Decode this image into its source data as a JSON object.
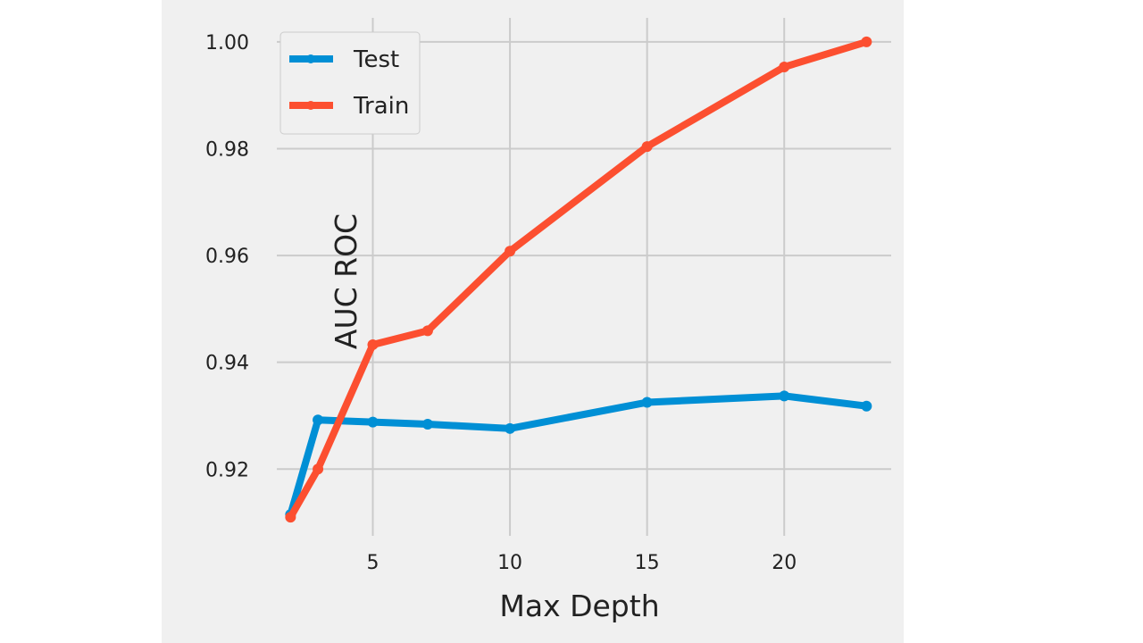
{
  "chart_data": {
    "type": "line",
    "xlabel": "Max Depth",
    "ylabel": "AUC ROC",
    "xlim": [
      1.5,
      23.9
    ],
    "ylim": [
      0.9075,
      1.0045
    ],
    "x_ticks": [
      5,
      10,
      15,
      20
    ],
    "y_ticks": [
      0.92,
      0.94,
      0.96,
      0.98,
      1.0
    ],
    "x_tick_labels": [
      "5",
      "10",
      "15",
      "20"
    ],
    "y_tick_labels": [
      "0.92",
      "0.94",
      "0.96",
      "0.98",
      "1.00"
    ],
    "grid": true,
    "legend_position": "top-left",
    "x": [
      2,
      3,
      5,
      7,
      10,
      15,
      20,
      23
    ],
    "series": [
      {
        "name": "Test",
        "color": "#008fd5",
        "values": [
          0.9115,
          0.9292,
          0.9288,
          0.9284,
          0.9276,
          0.9325,
          0.9337,
          0.9318
        ]
      },
      {
        "name": "Train",
        "color": "#fc4f30",
        "values": [
          0.911,
          0.92,
          0.9433,
          0.9459,
          0.9608,
          0.9804,
          0.9953,
          1.0
        ]
      }
    ]
  }
}
